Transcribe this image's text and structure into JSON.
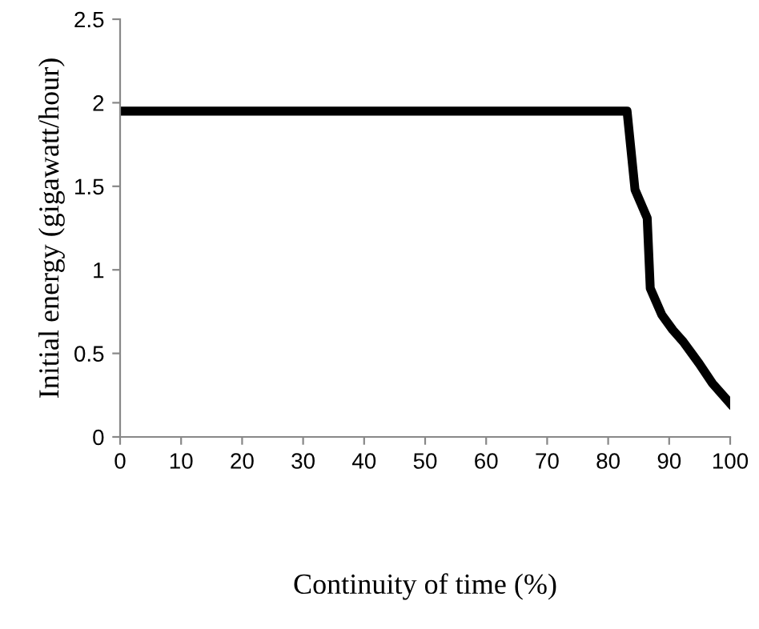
{
  "chart_data": {
    "type": "line",
    "xlabel": "Continuity of time (%)",
    "ylabel": "Initial energy (gigawatt/hour)",
    "x": [
      0,
      83.1,
      84.4,
      86.4,
      86.9,
      88.8,
      90.6,
      92.3,
      94.9,
      97.1,
      100
    ],
    "series": [
      {
        "color": "#000000",
        "values": [
          1.95,
          1.95,
          1.48,
          1.31,
          0.89,
          0.73,
          0.64,
          0.57,
          0.44,
          0.32,
          0.2
        ]
      }
    ],
    "xlim": [
      0,
      100
    ],
    "xticks": [
      0,
      10,
      20,
      30,
      40,
      50,
      60,
      70,
      80,
      90,
      100
    ],
    "ylim": [
      0,
      2.5
    ],
    "yticks": [
      0,
      0.5,
      1,
      1.5,
      2,
      2.5
    ],
    "grid": false,
    "legend": false,
    "marker": "none",
    "line_style": "solid"
  }
}
